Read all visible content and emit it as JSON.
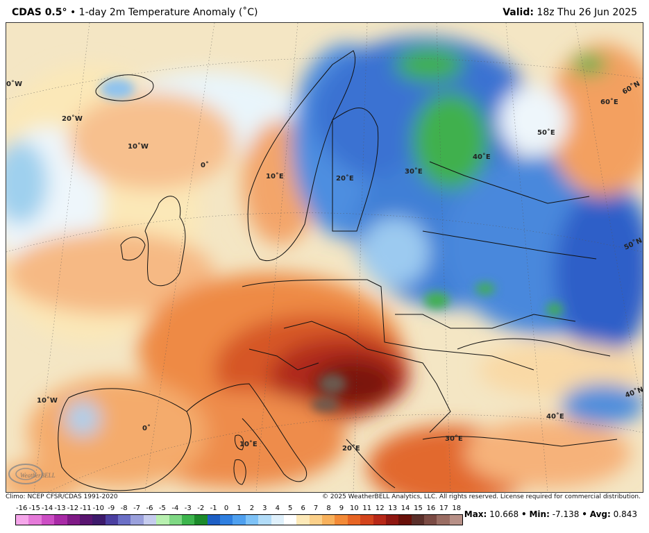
{
  "header": {
    "model": "CDAS 0.5",
    "degree": "°",
    "bullet": "•",
    "title": "1-day 2m Temperature Anomaly (˚C)",
    "valid_label": "Valid:",
    "valid_value": "18z Thu 26 Jun 2025"
  },
  "map": {
    "gridlabels": [
      {
        "text": "0˚W"
      },
      {
        "text": "20˚W"
      },
      {
        "text": "10˚W"
      },
      {
        "text": "0˚"
      },
      {
        "text": "10˚E"
      },
      {
        "text": "20˚E"
      },
      {
        "text": "30˚E"
      },
      {
        "text": "40˚E"
      },
      {
        "text": "50˚E"
      },
      {
        "text": "60˚E"
      },
      {
        "text": "60˚N"
      },
      {
        "text": "50˚N"
      },
      {
        "text": "40˚N"
      },
      {
        "text": "40˚E"
      },
      {
        "text": "10˚W"
      },
      {
        "text": "0˚"
      },
      {
        "text": "10˚E"
      },
      {
        "text": "20˚E"
      },
      {
        "text": "30˚E"
      }
    ],
    "logo_text": "WeatherBELL",
    "colors": {
      "ocean": "#f6e9c8",
      "warm_light": "#f9c38a",
      "warm_mid": "#f19a55",
      "warm_strong": "#d8562a",
      "warm_hot": "#a8281b",
      "warm_extreme": "#6b1510",
      "cool_light": "#cfe9f5",
      "cool_mid": "#7fb6e8",
      "cool_blue": "#3f7fd6",
      "cool_deep": "#2a5bc4",
      "green": "#39a84a"
    }
  },
  "footer": {
    "climo": "Climo: NCEP CFSR/CDAS 1991-2020",
    "copyright": "© 2025 WeatherBELL Analytics, LLC. All rights reserved. License required for commercial distribution."
  },
  "colorbar": {
    "labels": [
      "-16",
      "-15",
      "-14",
      "-13",
      "-12",
      "-11",
      "-10",
      "-9",
      "-8",
      "-7",
      "-6",
      "-5",
      "-4",
      "-3",
      "-2",
      "-1",
      "0",
      "1",
      "2",
      "3",
      "4",
      "5",
      "6",
      "7",
      "8",
      "9",
      "10",
      "11",
      "12",
      "13",
      "14",
      "15",
      "16",
      "17",
      "18"
    ],
    "colors": [
      "#f5a6ea",
      "#e57ad9",
      "#cc4ec4",
      "#a82aa6",
      "#7f1a86",
      "#591570",
      "#3d1a6b",
      "#4b3fa0",
      "#6b6fc6",
      "#9aa0dc",
      "#c6ccee",
      "#b8f0b0",
      "#7fd884",
      "#3db54d",
      "#1c8a2b",
      "#1e5fc4",
      "#2f7fe0",
      "#4fa0ef",
      "#7ec2f7",
      "#b2dcf8",
      "#dff0fb",
      "#ffffff",
      "#fde9b8",
      "#fbd08a",
      "#f8b15c",
      "#f38a37",
      "#e76524",
      "#d3441d",
      "#b72818",
      "#8f1711",
      "#681009",
      "#5a2f2a",
      "#7b4b44",
      "#9a6d63",
      "#b79087"
    ]
  },
  "stats": {
    "max_label": "Max:",
    "max_value": "10.668",
    "min_label": "Min:",
    "min_value": "-7.138",
    "avg_label": "Avg:",
    "avg_value": "0.843",
    "sep": "•"
  }
}
